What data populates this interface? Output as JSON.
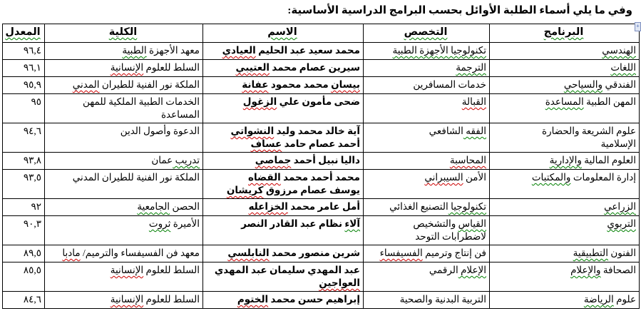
{
  "page": {
    "title": "وفي ما يلي أسماء الطلبة الأوائل بحسب البرامج الدراسية الأساسية:"
  },
  "colors": {
    "grammar_squiggle_green": "#008000",
    "spelling_squiggle_red": "#cc0000",
    "table_border": "#000000",
    "text": "#000000",
    "background": "#ffffff"
  },
  "icons": {
    "anchor_marker": "+"
  },
  "table": {
    "column_order": [
      "program",
      "major",
      "name",
      "college",
      "gpa"
    ],
    "headers": [
      {
        "key": "program",
        "label": "البرنامج",
        "mark": "green"
      },
      {
        "key": "major",
        "label": "التخصص",
        "mark": "green"
      },
      {
        "key": "name",
        "label": "الاسم",
        "mark": "green"
      },
      {
        "key": "college",
        "label": "الكلية",
        "mark": "green"
      },
      {
        "key": "gpa",
        "label": "المعدل",
        "mark": "green"
      }
    ],
    "rows": [
      {
        "program": [
          [
            {
              "t": "الهندسي",
              "m": "green"
            }
          ]
        ],
        "major": [
          [
            {
              "t": "تكنولوجيا الأجهزة الطبية",
              "m": "green"
            }
          ]
        ],
        "name": [
          [
            {
              "t": "محمد سعيد عبد الحليم ",
              "m": null
            },
            {
              "t": "العيادي",
              "m": "red"
            }
          ]
        ],
        "college": [
          [
            {
              "t": "معهد الأجهزة ",
              "m": null
            },
            {
              "t": "الطبية",
              "m": "green"
            }
          ]
        ],
        "gpa": "٩٦,٤"
      },
      {
        "program": [
          [
            {
              "t": "اللغات",
              "m": "green"
            }
          ]
        ],
        "major": [
          [
            {
              "t": "الترجمة",
              "m": "green"
            }
          ]
        ],
        "name": [
          [
            {
              "t": "سيرين عصام محمد ",
              "m": null
            },
            {
              "t": "العتيبي",
              "m": "red"
            }
          ]
        ],
        "college": [
          [
            {
              "t": "السلط للعلوم ",
              "m": null
            },
            {
              "t": "الإنسانية",
              "m": "red"
            }
          ]
        ],
        "gpa": "٩٦,١"
      },
      {
        "program": [
          [
            {
              "t": "الفندقي ",
              "m": null
            },
            {
              "t": "والسياحي",
              "m": "green"
            }
          ]
        ],
        "major": [
          [
            {
              "t": "خدمات المسافرين",
              "m": null
            }
          ]
        ],
        "name": [
          [
            {
              "t": "بيسان",
              "m": "red"
            },
            {
              "t": " محمد محمود ",
              "m": null
            },
            {
              "t": "عفانة",
              "m": "red"
            }
          ]
        ],
        "college": [
          [
            {
              "t": "الملكة نور الفنية للطيران ",
              "m": null
            },
            {
              "t": "المدني",
              "m": "red"
            }
          ]
        ],
        "gpa": "٩٥,٩"
      },
      {
        "program": [
          [
            {
              "t": "المهن الطبية ",
              "m": null
            },
            {
              "t": "المساعدة",
              "m": "green"
            }
          ]
        ],
        "major": [
          [
            {
              "t": "القبالة",
              "m": "red"
            }
          ]
        ],
        "name": [
          [
            {
              "t": "ضحى مأمون علي ",
              "m": null
            },
            {
              "t": "الزغول",
              "m": "red"
            }
          ]
        ],
        "college": [
          [
            {
              "t": "الخدمات الطبية الملكية للمهن",
              "m": null
            }
          ],
          [
            {
              "t": "المساعدة",
              "m": null
            }
          ]
        ],
        "gpa": "٩٥"
      },
      {
        "program": [
          [
            {
              "t": "علوم الشريعة والحضارة",
              "m": null
            }
          ],
          [
            {
              "t": "الإسلامية",
              "m": null
            }
          ]
        ],
        "major": [
          [
            {
              "t": "الفقه ",
              "m": "green"
            },
            {
              "t": "الشافعي",
              "m": null
            }
          ]
        ],
        "name": [
          [
            {
              "t": "آية خالد محمد وليد ",
              "m": null
            },
            {
              "t": "النشواتي",
              "m": "red"
            }
          ],
          [
            {
              "t": "أحمد عصام حامد ",
              "m": null
            },
            {
              "t": "عساف",
              "m": "red"
            }
          ]
        ],
        "college": [
          [
            {
              "t": "الدعوة وأصول الدين",
              "m": null
            }
          ]
        ],
        "gpa": "٩٤,٦"
      },
      {
        "program": [
          [
            {
              "t": "العلوم المالية ",
              "m": null
            },
            {
              "t": "والإدارية",
              "m": "green"
            }
          ]
        ],
        "major": [
          [
            {
              "t": "المحاسبة",
              "m": "red"
            }
          ]
        ],
        "name": [
          [
            {
              "t": "داليا نبيل أحمد ",
              "m": null
            },
            {
              "t": "جماصي",
              "m": "red"
            }
          ]
        ],
        "college": [
          [
            {
              "t": "تدريب ",
              "m": "green"
            },
            {
              "t": "عمان",
              "m": null
            }
          ]
        ],
        "gpa": "٩٣,٨"
      },
      {
        "program": [
          [
            {
              "t": "إدارة المعلومات ",
              "m": null
            },
            {
              "t": "والمكتبات",
              "m": "green"
            }
          ]
        ],
        "major": [
          [
            {
              "t": "الأمن ",
              "m": null
            },
            {
              "t": "السيبراني",
              "m": "red"
            }
          ]
        ],
        "name": [
          [
            {
              "t": "محمد أحمد محمد ",
              "m": null
            },
            {
              "t": "القضاه",
              "m": "red"
            }
          ],
          [
            {
              "t": "يوسف عصام مرزوق ",
              "m": null
            },
            {
              "t": "كريشان",
              "m": "red"
            }
          ]
        ],
        "college": [
          [
            {
              "t": "الملكة نور الفنية للطيران المدني",
              "m": null
            }
          ]
        ],
        "gpa": "٩٣,٥"
      },
      {
        "program": [
          [
            {
              "t": "الزراعي",
              "m": "green"
            }
          ]
        ],
        "major": [
          [
            {
              "t": "تكنولوجيا ",
              "m": "green"
            },
            {
              "t": "التصنيع الغذائي",
              "m": null
            }
          ]
        ],
        "name": [
          [
            {
              "t": "أمل عامر محمد ",
              "m": null
            },
            {
              "t": "الخزاعله",
              "m": "red"
            }
          ]
        ],
        "college": [
          [
            {
              "t": "الحصن ",
              "m": null
            },
            {
              "t": "الجامعية",
              "m": "green"
            }
          ]
        ],
        "gpa": "٩٢"
      },
      {
        "program": [
          [
            {
              "t": "التربوي",
              "m": "green"
            }
          ]
        ],
        "major": [
          [
            {
              "t": "القياس",
              "m": "green"
            },
            {
              "t": " والتشخيص",
              "m": null
            }
          ],
          [
            {
              "t": "لاضطرابات التوحد",
              "m": null
            }
          ]
        ],
        "name": [
          [
            {
              "t": "آلاء",
              "m": "green"
            },
            {
              "t": " نظام عبد القادر النصر",
              "m": null
            }
          ]
        ],
        "college": [
          [
            {
              "t": "الأميرة ",
              "m": null
            },
            {
              "t": "ثروت",
              "m": "green"
            }
          ]
        ],
        "gpa": "٩٠,٣"
      },
      {
        "program": [
          [
            {
              "t": "الفنون ",
              "m": null
            },
            {
              "t": "التطبيقية",
              "m": "green"
            }
          ]
        ],
        "major": [
          [
            {
              "t": "فن إنتاج وترميم ",
              "m": null
            },
            {
              "t": "الفسيفساء",
              "m": "red"
            }
          ]
        ],
        "name": [
          [
            {
              "t": "شرين منصور محمد ",
              "m": null
            },
            {
              "t": "النابلسي",
              "m": "red"
            }
          ]
        ],
        "college": [
          [
            {
              "t": "معهد فن الفسيفساء والترميم/ ",
              "m": null
            },
            {
              "t": "مادبا",
              "m": "red"
            }
          ]
        ],
        "gpa": "٨٩,٥"
      },
      {
        "program": [
          [
            {
              "t": "الصحافة ",
              "m": null
            },
            {
              "t": "والإعلام",
              "m": "green"
            }
          ]
        ],
        "major": [
          [
            {
              "t": "الإعلام ",
              "m": "green"
            },
            {
              "t": "الرقمي",
              "m": null
            }
          ]
        ],
        "name": [
          [
            {
              "t": "عبد المهدي سليمان عبد المهدي",
              "m": null
            }
          ],
          [
            {
              "t": "العواجين",
              "m": "red"
            }
          ]
        ],
        "college": [
          [
            {
              "t": "السلط للعلوم ",
              "m": null
            },
            {
              "t": "الإنسانية",
              "m": "red"
            }
          ]
        ],
        "gpa": "٨٥,٥"
      },
      {
        "program": [
          [
            {
              "t": "علوم ",
              "m": null
            },
            {
              "t": "الرياضة",
              "m": "green"
            }
          ]
        ],
        "major": [
          [
            {
              "t": "التربية البدنية والصحية",
              "m": null
            }
          ]
        ],
        "name": [
          [
            {
              "t": "إبراهيم حسن محمد ",
              "m": null
            },
            {
              "t": "الختوم",
              "m": "red"
            }
          ]
        ],
        "college": [
          [
            {
              "t": "السلط للعلوم ",
              "m": null
            },
            {
              "t": "الإنسانية",
              "m": "red"
            }
          ]
        ],
        "gpa": "٨٤,٦"
      }
    ]
  }
}
